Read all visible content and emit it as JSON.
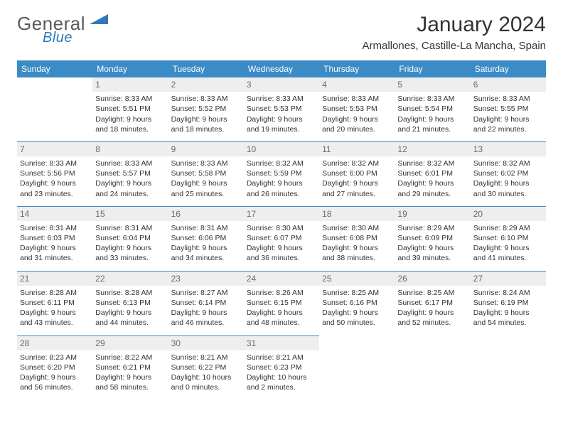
{
  "brand": {
    "word1": "General",
    "word2": "Blue"
  },
  "title": "January 2024",
  "location": "Armallones, Castille-La Mancha, Spain",
  "colors": {
    "header_bg": "#3b8bc6",
    "header_text": "#ffffff",
    "daynum_bg": "#eeeeee",
    "daynum_text": "#6b6b6b",
    "row_divider": "#3b8bc6",
    "body_text": "#333333",
    "brand_grey": "#5a5a5a",
    "brand_blue": "#2f79b9"
  },
  "typography": {
    "title_fontsize": 30,
    "location_fontsize": 15,
    "dayheader_fontsize": 12,
    "cell_fontsize": 10.5
  },
  "weekdays": [
    "Sunday",
    "Monday",
    "Tuesday",
    "Wednesday",
    "Thursday",
    "Friday",
    "Saturday"
  ],
  "weeks": [
    [
      null,
      {
        "d": "1",
        "sr": "8:33 AM",
        "ss": "5:51 PM",
        "dl": "9 hours and 18 minutes."
      },
      {
        "d": "2",
        "sr": "8:33 AM",
        "ss": "5:52 PM",
        "dl": "9 hours and 18 minutes."
      },
      {
        "d": "3",
        "sr": "8:33 AM",
        "ss": "5:53 PM",
        "dl": "9 hours and 19 minutes."
      },
      {
        "d": "4",
        "sr": "8:33 AM",
        "ss": "5:53 PM",
        "dl": "9 hours and 20 minutes."
      },
      {
        "d": "5",
        "sr": "8:33 AM",
        "ss": "5:54 PM",
        "dl": "9 hours and 21 minutes."
      },
      {
        "d": "6",
        "sr": "8:33 AM",
        "ss": "5:55 PM",
        "dl": "9 hours and 22 minutes."
      }
    ],
    [
      {
        "d": "7",
        "sr": "8:33 AM",
        "ss": "5:56 PM",
        "dl": "9 hours and 23 minutes."
      },
      {
        "d": "8",
        "sr": "8:33 AM",
        "ss": "5:57 PM",
        "dl": "9 hours and 24 minutes."
      },
      {
        "d": "9",
        "sr": "8:33 AM",
        "ss": "5:58 PM",
        "dl": "9 hours and 25 minutes."
      },
      {
        "d": "10",
        "sr": "8:32 AM",
        "ss": "5:59 PM",
        "dl": "9 hours and 26 minutes."
      },
      {
        "d": "11",
        "sr": "8:32 AM",
        "ss": "6:00 PM",
        "dl": "9 hours and 27 minutes."
      },
      {
        "d": "12",
        "sr": "8:32 AM",
        "ss": "6:01 PM",
        "dl": "9 hours and 29 minutes."
      },
      {
        "d": "13",
        "sr": "8:32 AM",
        "ss": "6:02 PM",
        "dl": "9 hours and 30 minutes."
      }
    ],
    [
      {
        "d": "14",
        "sr": "8:31 AM",
        "ss": "6:03 PM",
        "dl": "9 hours and 31 minutes."
      },
      {
        "d": "15",
        "sr": "8:31 AM",
        "ss": "6:04 PM",
        "dl": "9 hours and 33 minutes."
      },
      {
        "d": "16",
        "sr": "8:31 AM",
        "ss": "6:06 PM",
        "dl": "9 hours and 34 minutes."
      },
      {
        "d": "17",
        "sr": "8:30 AM",
        "ss": "6:07 PM",
        "dl": "9 hours and 36 minutes."
      },
      {
        "d": "18",
        "sr": "8:30 AM",
        "ss": "6:08 PM",
        "dl": "9 hours and 38 minutes."
      },
      {
        "d": "19",
        "sr": "8:29 AM",
        "ss": "6:09 PM",
        "dl": "9 hours and 39 minutes."
      },
      {
        "d": "20",
        "sr": "8:29 AM",
        "ss": "6:10 PM",
        "dl": "9 hours and 41 minutes."
      }
    ],
    [
      {
        "d": "21",
        "sr": "8:28 AM",
        "ss": "6:11 PM",
        "dl": "9 hours and 43 minutes."
      },
      {
        "d": "22",
        "sr": "8:28 AM",
        "ss": "6:13 PM",
        "dl": "9 hours and 44 minutes."
      },
      {
        "d": "23",
        "sr": "8:27 AM",
        "ss": "6:14 PM",
        "dl": "9 hours and 46 minutes."
      },
      {
        "d": "24",
        "sr": "8:26 AM",
        "ss": "6:15 PM",
        "dl": "9 hours and 48 minutes."
      },
      {
        "d": "25",
        "sr": "8:25 AM",
        "ss": "6:16 PM",
        "dl": "9 hours and 50 minutes."
      },
      {
        "d": "26",
        "sr": "8:25 AM",
        "ss": "6:17 PM",
        "dl": "9 hours and 52 minutes."
      },
      {
        "d": "27",
        "sr": "8:24 AM",
        "ss": "6:19 PM",
        "dl": "9 hours and 54 minutes."
      }
    ],
    [
      {
        "d": "28",
        "sr": "8:23 AM",
        "ss": "6:20 PM",
        "dl": "9 hours and 56 minutes."
      },
      {
        "d": "29",
        "sr": "8:22 AM",
        "ss": "6:21 PM",
        "dl": "9 hours and 58 minutes."
      },
      {
        "d": "30",
        "sr": "8:21 AM",
        "ss": "6:22 PM",
        "dl": "10 hours and 0 minutes."
      },
      {
        "d": "31",
        "sr": "8:21 AM",
        "ss": "6:23 PM",
        "dl": "10 hours and 2 minutes."
      },
      null,
      null,
      null
    ]
  ],
  "labels": {
    "sunrise": "Sunrise:",
    "sunset": "Sunset:",
    "daylight": "Daylight:"
  }
}
